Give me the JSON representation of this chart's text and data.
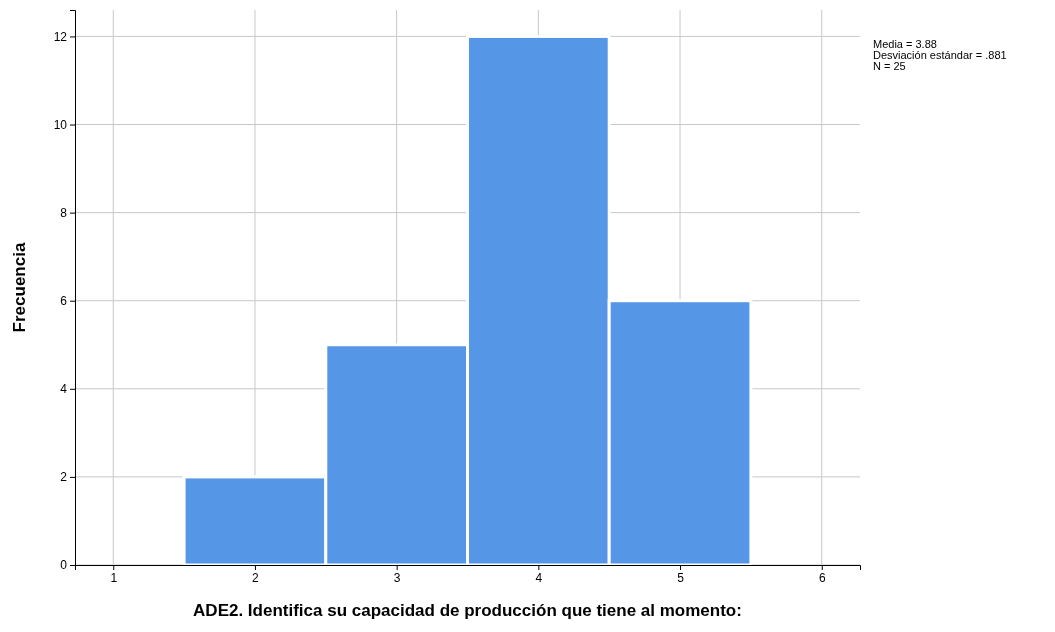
{
  "chart_data": {
    "type": "histogram",
    "bins": [
      1.5,
      2.5,
      3.5,
      4.5,
      5.5
    ],
    "values": [
      2,
      5,
      12,
      6
    ],
    "color": "#5596e6",
    "xlim": [
      0.73,
      6.27
    ],
    "xticks": [
      1,
      2,
      3,
      4,
      5,
      6
    ],
    "ylim": [
      0,
      12.6
    ],
    "yticks": [
      0,
      2,
      4,
      6,
      8,
      10,
      12
    ],
    "grid": true,
    "xlabel": "ADE2. Identifica su capacidad de producción que tiene al momento:",
    "ylabel": "Frecuencia",
    "annotations": [
      "Media = 3.88",
      "Desviación estándar = .881",
      "N = 25"
    ]
  }
}
